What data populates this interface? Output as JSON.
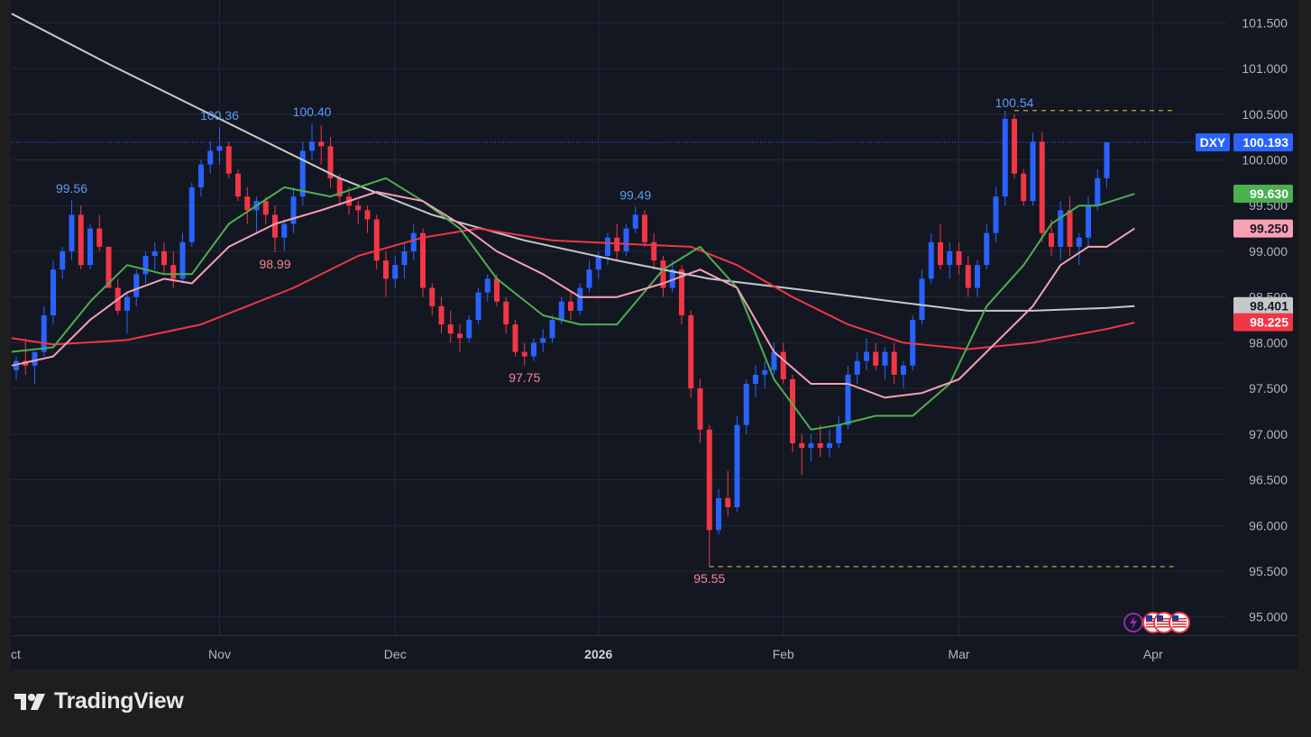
{
  "chart_data": {
    "type": "candlestick",
    "symbol": "DXY",
    "last_price": "100.193",
    "ylim": [
      94.8,
      101.75
    ],
    "y_ticks": [
      "95.000",
      "95.500",
      "96.000",
      "96.500",
      "97.000",
      "97.500",
      "98.000",
      "98.500",
      "99.000",
      "99.500",
      "100.000",
      "100.500",
      "101.000",
      "101.500"
    ],
    "x_ticks": [
      {
        "label": "ct",
        "i": 0,
        "bold": false
      },
      {
        "label": "Nov",
        "i": 22,
        "bold": false
      },
      {
        "label": "Dec",
        "i": 41,
        "bold": false
      },
      {
        "label": "2026",
        "i": 63,
        "bold": true
      },
      {
        "label": "Feb",
        "i": 83,
        "bold": false
      },
      {
        "label": "Mar",
        "i": 102,
        "bold": false
      },
      {
        "label": "Apr",
        "i": 123,
        "bold": false
      }
    ],
    "candles": [
      [
        97.7,
        97.85,
        97.6,
        97.8
      ],
      [
        97.8,
        98.05,
        97.65,
        97.75
      ],
      [
        97.75,
        97.9,
        97.55,
        97.9
      ],
      [
        97.9,
        98.4,
        97.85,
        98.3
      ],
      [
        98.3,
        98.9,
        98.2,
        98.8
      ],
      [
        98.8,
        99.05,
        98.7,
        99.0
      ],
      [
        99.0,
        99.56,
        98.9,
        99.4
      ],
      [
        99.4,
        99.5,
        98.8,
        98.85
      ],
      [
        98.85,
        99.3,
        98.8,
        99.25
      ],
      [
        99.25,
        99.4,
        99.0,
        99.05
      ],
      [
        99.05,
        99.0,
        98.6,
        98.6
      ],
      [
        98.6,
        98.7,
        98.3,
        98.35
      ],
      [
        98.35,
        98.55,
        98.1,
        98.5
      ],
      [
        98.5,
        98.8,
        98.4,
        98.75
      ],
      [
        98.75,
        99.0,
        98.65,
        98.95
      ],
      [
        98.95,
        99.1,
        98.8,
        99.0
      ],
      [
        99.0,
        99.1,
        98.75,
        98.85
      ],
      [
        98.85,
        99.0,
        98.6,
        98.7
      ],
      [
        98.7,
        99.2,
        98.65,
        99.1
      ],
      [
        99.1,
        99.75,
        99.05,
        99.7
      ],
      [
        99.7,
        100.0,
        99.6,
        99.95
      ],
      [
        99.95,
        100.2,
        99.85,
        100.1
      ],
      [
        100.1,
        100.36,
        99.95,
        100.15
      ],
      [
        100.15,
        100.2,
        99.8,
        99.85
      ],
      [
        99.85,
        99.9,
        99.55,
        99.6
      ],
      [
        99.6,
        99.7,
        99.3,
        99.45
      ],
      [
        99.45,
        99.6,
        99.2,
        99.55
      ],
      [
        99.55,
        99.6,
        99.3,
        99.4
      ],
      [
        99.4,
        99.5,
        98.99,
        99.15
      ],
      [
        99.15,
        99.35,
        99.0,
        99.3
      ],
      [
        99.3,
        99.7,
        99.2,
        99.6
      ],
      [
        99.6,
        100.2,
        99.5,
        100.1
      ],
      [
        100.1,
        100.4,
        100.0,
        100.2
      ],
      [
        100.2,
        100.38,
        99.95,
        100.15
      ],
      [
        100.15,
        100.25,
        99.7,
        99.8
      ],
      [
        99.8,
        99.85,
        99.5,
        99.6
      ],
      [
        99.6,
        99.7,
        99.4,
        99.5
      ],
      [
        99.5,
        99.55,
        99.3,
        99.45
      ],
      [
        99.45,
        99.5,
        99.2,
        99.35
      ],
      [
        99.35,
        99.4,
        98.8,
        98.9
      ],
      [
        98.9,
        99.0,
        98.5,
        98.7
      ],
      [
        98.7,
        98.95,
        98.6,
        98.85
      ],
      [
        98.85,
        99.1,
        98.7,
        99.0
      ],
      [
        99.0,
        99.3,
        98.9,
        99.2
      ],
      [
        99.2,
        99.25,
        98.5,
        98.6
      ],
      [
        98.6,
        98.65,
        98.3,
        98.4
      ],
      [
        98.4,
        98.5,
        98.1,
        98.2
      ],
      [
        98.2,
        98.35,
        98.0,
        98.1
      ],
      [
        98.1,
        98.2,
        97.9,
        98.05
      ],
      [
        98.05,
        98.3,
        98.0,
        98.25
      ],
      [
        98.25,
        98.6,
        98.2,
        98.55
      ],
      [
        98.55,
        98.75,
        98.45,
        98.7
      ],
      [
        98.7,
        98.75,
        98.4,
        98.45
      ],
      [
        98.45,
        98.5,
        98.1,
        98.2
      ],
      [
        98.2,
        98.25,
        97.85,
        97.9
      ],
      [
        97.9,
        98.0,
        97.75,
        97.85
      ],
      [
        97.85,
        98.05,
        97.8,
        98.0
      ],
      [
        98.0,
        98.15,
        97.9,
        98.05
      ],
      [
        98.05,
        98.3,
        98.0,
        98.25
      ],
      [
        98.25,
        98.5,
        98.2,
        98.45
      ],
      [
        98.45,
        98.55,
        98.25,
        98.35
      ],
      [
        98.35,
        98.65,
        98.3,
        98.6
      ],
      [
        98.6,
        98.9,
        98.55,
        98.8
      ],
      [
        98.8,
        99.0,
        98.7,
        98.95
      ],
      [
        98.95,
        99.2,
        98.85,
        99.15
      ],
      [
        99.15,
        99.3,
        98.9,
        99.0
      ],
      [
        99.0,
        99.3,
        98.95,
        99.25
      ],
      [
        99.25,
        99.49,
        99.2,
        99.4
      ],
      [
        99.4,
        99.45,
        99.05,
        99.1
      ],
      [
        99.1,
        99.2,
        98.8,
        98.9
      ],
      [
        98.9,
        98.95,
        98.5,
        98.6
      ],
      [
        98.6,
        98.9,
        98.55,
        98.8
      ],
      [
        98.8,
        98.85,
        98.2,
        98.3
      ],
      [
        98.3,
        98.35,
        97.4,
        97.5
      ],
      [
        97.5,
        97.6,
        96.9,
        97.05
      ],
      [
        97.05,
        97.1,
        95.55,
        95.95
      ],
      [
        95.95,
        96.4,
        95.9,
        96.3
      ],
      [
        96.3,
        96.6,
        96.1,
        96.2
      ],
      [
        96.2,
        97.2,
        96.15,
        97.1
      ],
      [
        97.1,
        97.6,
        97.0,
        97.55
      ],
      [
        97.55,
        97.75,
        97.4,
        97.65
      ],
      [
        97.65,
        97.8,
        97.5,
        97.7
      ],
      [
        97.7,
        98.0,
        97.65,
        97.9
      ],
      [
        97.9,
        98.0,
        97.55,
        97.6
      ],
      [
        97.6,
        97.65,
        96.8,
        96.9
      ],
      [
        96.9,
        97.0,
        96.55,
        96.85
      ],
      [
        96.85,
        97.0,
        96.7,
        96.9
      ],
      [
        96.9,
        97.1,
        96.75,
        96.85
      ],
      [
        96.85,
        97.05,
        96.75,
        96.9
      ],
      [
        96.9,
        97.2,
        96.85,
        97.1
      ],
      [
        97.1,
        97.75,
        97.05,
        97.65
      ],
      [
        97.65,
        97.9,
        97.55,
        97.8
      ],
      [
        97.8,
        98.05,
        97.7,
        97.9
      ],
      [
        97.9,
        98.0,
        97.7,
        97.75
      ],
      [
        97.75,
        97.95,
        97.6,
        97.9
      ],
      [
        97.9,
        98.0,
        97.55,
        97.65
      ],
      [
        97.65,
        97.8,
        97.5,
        97.75
      ],
      [
        97.75,
        98.3,
        97.7,
        98.25
      ],
      [
        98.25,
        98.8,
        98.2,
        98.7
      ],
      [
        98.7,
        99.2,
        98.65,
        99.1
      ],
      [
        99.1,
        99.3,
        98.8,
        98.85
      ],
      [
        98.85,
        99.1,
        98.7,
        99.0
      ],
      [
        99.0,
        99.1,
        98.75,
        98.85
      ],
      [
        98.85,
        98.95,
        98.5,
        98.6
      ],
      [
        98.6,
        98.9,
        98.5,
        98.85
      ],
      [
        98.85,
        99.3,
        98.8,
        99.2
      ],
      [
        99.2,
        99.7,
        99.1,
        99.6
      ],
      [
        99.6,
        100.54,
        99.5,
        100.45
      ],
      [
        100.45,
        100.5,
        99.8,
        99.85
      ],
      [
        99.85,
        99.9,
        99.5,
        99.55
      ],
      [
        99.55,
        100.3,
        99.5,
        100.2
      ],
      [
        100.2,
        100.3,
        99.1,
        99.2
      ],
      [
        99.2,
        99.35,
        98.95,
        99.05
      ],
      [
        99.05,
        99.55,
        98.9,
        99.45
      ],
      [
        99.45,
        99.6,
        98.95,
        99.05
      ],
      [
        99.05,
        99.2,
        98.85,
        99.15
      ],
      [
        99.15,
        99.6,
        99.05,
        99.5
      ],
      [
        99.5,
        99.9,
        99.45,
        99.8
      ],
      [
        99.8,
        100.193,
        99.7,
        100.193
      ]
    ],
    "series": [
      {
        "id": "ma-gray",
        "color": "#c8c8c8",
        "width": 2,
        "points": [
          [
            -0.5,
            101.6
          ],
          [
            10,
            101.05
          ],
          [
            22,
            100.45
          ],
          [
            35,
            99.8
          ],
          [
            45,
            99.4
          ],
          [
            55,
            99.12
          ],
          [
            65,
            98.9
          ],
          [
            75,
            98.7
          ],
          [
            85,
            98.58
          ],
          [
            95,
            98.45
          ],
          [
            103,
            98.35
          ],
          [
            110,
            98.35
          ],
          [
            118,
            98.38
          ],
          [
            121,
            98.4
          ]
        ]
      },
      {
        "id": "ma-red",
        "color": "#f23645",
        "width": 2,
        "points": [
          [
            -0.5,
            98.05
          ],
          [
            4,
            97.98
          ],
          [
            12,
            98.03
          ],
          [
            20,
            98.2
          ],
          [
            30,
            98.6
          ],
          [
            37,
            98.95
          ],
          [
            44,
            99.15
          ],
          [
            50,
            99.25
          ],
          [
            58,
            99.12
          ],
          [
            66,
            99.08
          ],
          [
            73,
            99.05
          ],
          [
            78,
            98.85
          ],
          [
            84,
            98.5
          ],
          [
            90,
            98.2
          ],
          [
            96,
            98.0
          ],
          [
            103,
            97.93
          ],
          [
            110,
            98.0
          ],
          [
            118,
            98.15
          ],
          [
            121,
            98.22
          ]
        ]
      },
      {
        "id": "ma-green",
        "color": "#4caf50",
        "width": 2,
        "points": [
          [
            -0.5,
            97.9
          ],
          [
            4,
            97.95
          ],
          [
            8,
            98.45
          ],
          [
            12,
            98.85
          ],
          [
            16,
            98.75
          ],
          [
            19,
            98.75
          ],
          [
            23,
            99.3
          ],
          [
            29,
            99.7
          ],
          [
            34,
            99.6
          ],
          [
            40,
            99.8
          ],
          [
            44,
            99.55
          ],
          [
            48,
            99.25
          ],
          [
            52,
            98.7
          ],
          [
            57,
            98.3
          ],
          [
            61,
            98.2
          ],
          [
            65,
            98.2
          ],
          [
            70,
            98.8
          ],
          [
            74,
            99.05
          ],
          [
            78,
            98.6
          ],
          [
            82,
            97.6
          ],
          [
            86,
            97.05
          ],
          [
            89,
            97.1
          ],
          [
            93,
            97.2
          ],
          [
            97,
            97.2
          ],
          [
            101,
            97.55
          ],
          [
            105,
            98.4
          ],
          [
            109,
            98.85
          ],
          [
            112,
            99.3
          ],
          [
            115,
            99.5
          ],
          [
            117,
            99.5
          ],
          [
            121,
            99.63
          ]
        ]
      },
      {
        "id": "ma-pink",
        "color": "#f7a1b3",
        "width": 2,
        "points": [
          [
            -0.5,
            97.75
          ],
          [
            4,
            97.85
          ],
          [
            8,
            98.25
          ],
          [
            12,
            98.55
          ],
          [
            16,
            98.7
          ],
          [
            19,
            98.65
          ],
          [
            23,
            99.05
          ],
          [
            28,
            99.3
          ],
          [
            33,
            99.45
          ],
          [
            39,
            99.65
          ],
          [
            44,
            99.55
          ],
          [
            48,
            99.3
          ],
          [
            52,
            99.0
          ],
          [
            57,
            98.75
          ],
          [
            61,
            98.5
          ],
          [
            65,
            98.5
          ],
          [
            70,
            98.65
          ],
          [
            74,
            98.8
          ],
          [
            78,
            98.6
          ],
          [
            82,
            97.9
          ],
          [
            86,
            97.55
          ],
          [
            90,
            97.55
          ],
          [
            94,
            97.4
          ],
          [
            98,
            97.45
          ],
          [
            102,
            97.6
          ],
          [
            106,
            98.0
          ],
          [
            110,
            98.4
          ],
          [
            113,
            98.85
          ],
          [
            116,
            99.05
          ],
          [
            118,
            99.05
          ],
          [
            121,
            99.25
          ]
        ]
      }
    ],
    "annotations": [
      {
        "text": "99.56",
        "i": 6,
        "kind": "high"
      },
      {
        "text": "100.36",
        "i": 22,
        "kind": "high"
      },
      {
        "text": "98.99",
        "i": 28,
        "kind": "low"
      },
      {
        "text": "100.40",
        "i": 32,
        "kind": "high"
      },
      {
        "text": "97.75",
        "i": 55,
        "kind": "low"
      },
      {
        "text": "99.49",
        "i": 67,
        "kind": "high"
      },
      {
        "text": "95.55",
        "i": 75,
        "kind": "low"
      },
      {
        "text": "100.54",
        "i": 108,
        "kind": "high"
      }
    ],
    "price_tags": [
      {
        "text": "100.193",
        "color": "#2962ff",
        "fg": "#ffffff",
        "value": 100.193,
        "prefix": "DXY"
      },
      {
        "text": "99.630",
        "color": "#4caf50",
        "fg": "#ffffff",
        "value": 99.63
      },
      {
        "text": "99.250",
        "color": "#f7a1b3",
        "fg": "#131722",
        "value": 99.25
      },
      {
        "text": "98.401",
        "color": "#c8c8c8",
        "fg": "#131722",
        "value": 98.401
      },
      {
        "text": "98.225",
        "color": "#f23645",
        "fg": "#ffffff",
        "value": 98.225
      }
    ],
    "dashed_levels": [
      {
        "value": 100.54,
        "from_i": 108
      },
      {
        "value": 95.55,
        "from_i": 75
      }
    ],
    "colors": {
      "up": "#2962ff",
      "down": "#f23645",
      "background": "#131722",
      "grid": "#242836",
      "text": "#b2b5be",
      "dashed": "#f0c93a"
    }
  },
  "footer": {
    "brand": "TradingView"
  }
}
